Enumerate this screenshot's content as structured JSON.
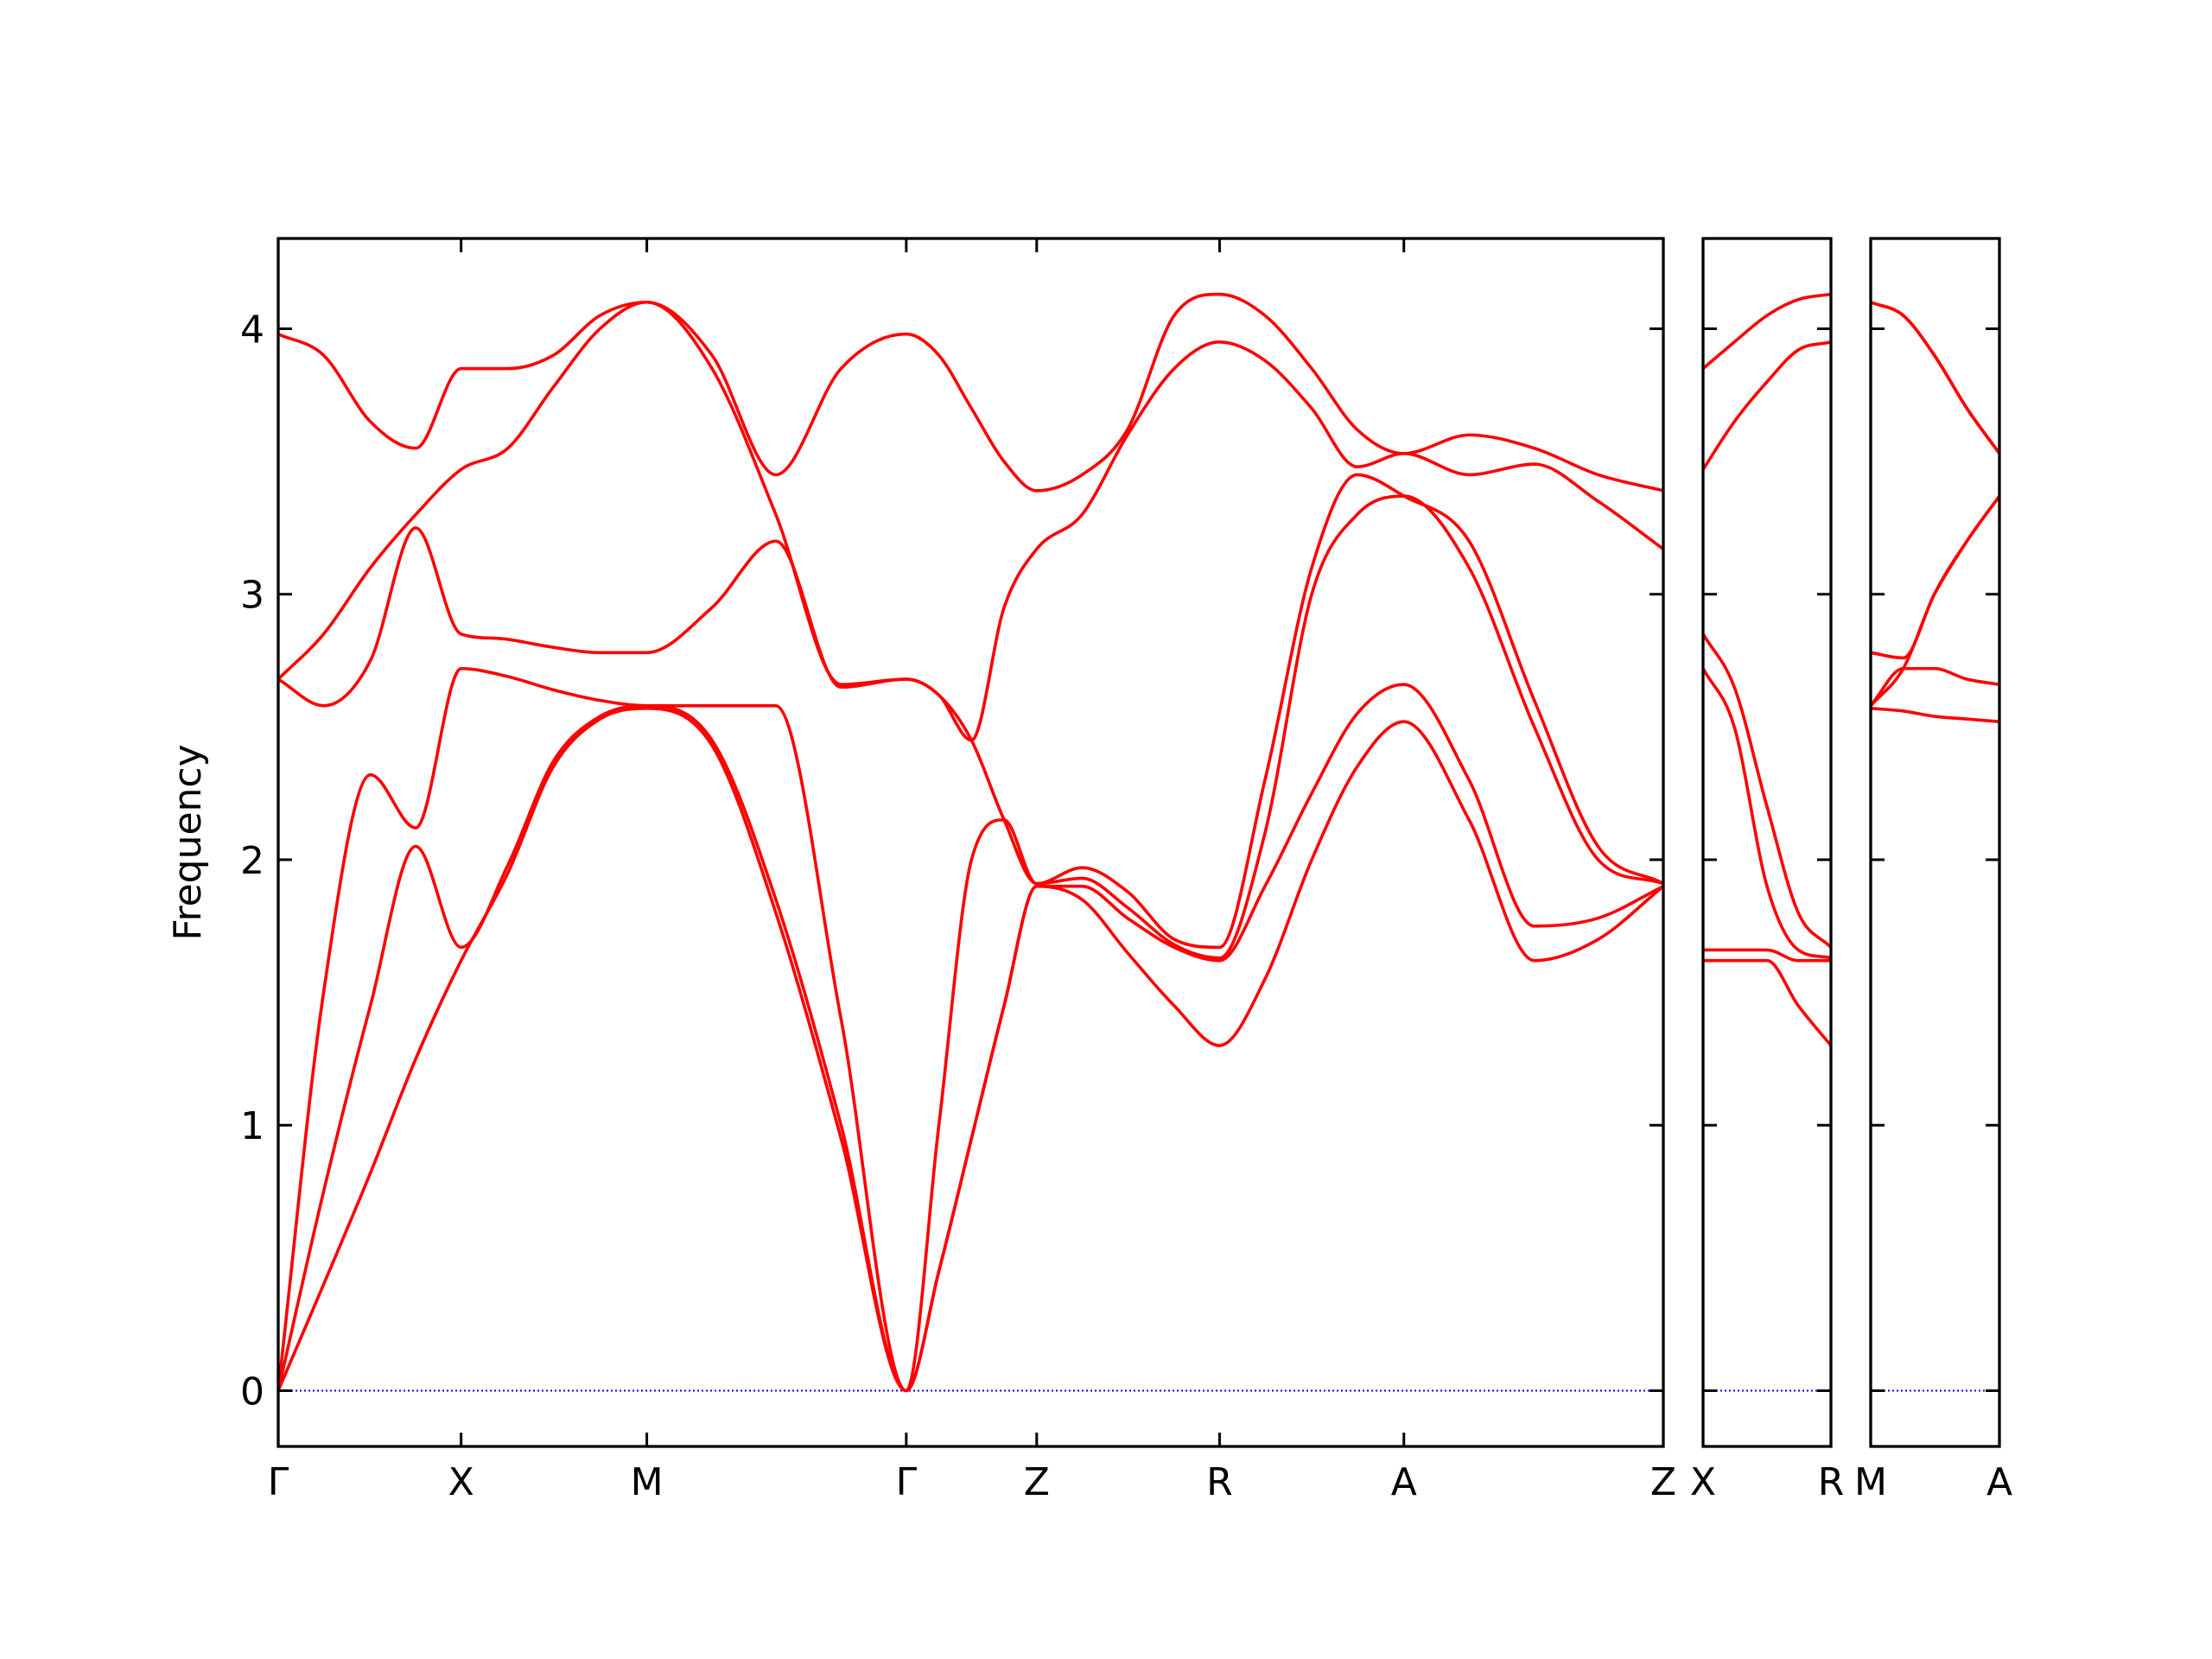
{
  "chart_data": [
    {
      "type": "line",
      "ylabel": "Frequency",
      "x": [
        0,
        0.032,
        0.065,
        0.097,
        0.129,
        0.162,
        0.194,
        0.227,
        0.26,
        0.306,
        0.351,
        0.397,
        0.443,
        0.466,
        0.489,
        0.512,
        0.535,
        0.567,
        0.599,
        0.632,
        0.664,
        0.696,
        0.729,
        0.761,
        0.794,
        0.84,
        0.886,
        0.931,
        0.977
      ],
      "xlim": [
        0,
        0.977
      ],
      "ylim": [
        -0.21,
        4.34
      ],
      "xticks": [
        {
          "value": 0,
          "label": "Γ"
        },
        {
          "value": 0.129,
          "label": "X"
        },
        {
          "value": 0.26,
          "label": "M"
        },
        {
          "value": 0.443,
          "label": "Γ"
        },
        {
          "value": 0.535,
          "label": "Z"
        },
        {
          "value": 0.664,
          "label": "R"
        },
        {
          "value": 0.794,
          "label": "A"
        },
        {
          "value": 0.977,
          "label": "Z"
        }
      ],
      "yticks": [
        0,
        1,
        2,
        3,
        4
      ],
      "ytick_labels": true,
      "hline": 0,
      "hline_color": "#0000ff",
      "series": [
        {
          "color": "#ff0000",
          "values": [
            0,
            0.4,
            0.82,
            1.25,
            1.62,
            1.95,
            2.35,
            2.53,
            2.57,
            2.43,
            1.8,
            0.95,
            0,
            0.45,
            0.95,
            1.45,
            1.9,
            1.85,
            1.65,
            1.45,
            1.3,
            1.55,
            2.0,
            2.35,
            2.52,
            2.15,
            1.62,
            1.7,
            1.9
          ]
        },
        {
          "color": "#ff0000",
          "values": [
            0,
            0.75,
            1.45,
            2.05,
            1.67,
            1.98,
            2.37,
            2.54,
            2.58,
            2.45,
            1.85,
            1.0,
            0,
            0.45,
            0.95,
            1.45,
            1.9,
            1.9,
            1.78,
            1.67,
            1.62,
            1.9,
            2.25,
            2.55,
            2.66,
            2.3,
            1.75,
            1.78,
            1.9
          ]
        },
        {
          "color": "#ff0000",
          "values": [
            0,
            1.5,
            2.32,
            2.12,
            2.72,
            2.69,
            2.64,
            2.6,
            2.58,
            2.58,
            2.58,
            1.4,
            0,
            1.0,
            2.0,
            2.15,
            1.91,
            1.93,
            1.82,
            1.68,
            1.63,
            2.1,
            3.0,
            3.3,
            3.37,
            3.1,
            2.5,
            2.0,
            1.91
          ]
        },
        {
          "color": "#ff0000",
          "values": [
            2.68,
            2.58,
            2.75,
            3.25,
            2.85,
            2.83,
            2.8,
            2.78,
            2.78,
            2.95,
            3.2,
            2.65,
            2.68,
            2.62,
            2.45,
            2.15,
            1.91,
            1.97,
            1.88,
            1.7,
            1.67,
            2.3,
            3.1,
            3.45,
            3.37,
            3.2,
            2.6,
            2.05,
            1.91
          ]
        },
        {
          "color": "#ff0000",
          "values": [
            2.68,
            2.85,
            3.1,
            3.3,
            3.47,
            3.55,
            3.78,
            4.0,
            4.1,
            3.85,
            3.3,
            2.66,
            2.68,
            2.62,
            2.45,
            2.95,
            3.17,
            3.3,
            3.6,
            3.85,
            3.95,
            3.88,
            3.7,
            3.48,
            3.53,
            3.45,
            3.49,
            3.35,
            3.17
          ]
        },
        {
          "color": "#ff0000",
          "values": [
            3.98,
            3.9,
            3.65,
            3.55,
            3.85,
            3.85,
            3.9,
            4.05,
            4.1,
            3.9,
            3.45,
            3.85,
            3.98,
            3.9,
            3.7,
            3.5,
            3.39,
            3.45,
            3.62,
            4.05,
            4.13,
            4.05,
            3.85,
            3.62,
            3.53,
            3.6,
            3.55,
            3.45,
            3.39
          ]
        }
      ]
    },
    {
      "type": "line",
      "x": [
        0.977,
        0.999,
        1.022,
        1.044,
        1.067
      ],
      "xlim": [
        0.977,
        1.067
      ],
      "ylim": [
        -0.21,
        4.34
      ],
      "xticks": [
        {
          "value": 0.977,
          "label": "X"
        },
        {
          "value": 1.067,
          "label": "R"
        }
      ],
      "yticks": [
        0,
        1,
        2,
        3,
        4
      ],
      "ytick_labels": false,
      "hline": 0,
      "hline_color": "#0000ff",
      "series": [
        {
          "color": "#ff0000",
          "values": [
            1.62,
            1.62,
            1.62,
            1.45,
            1.3
          ]
        },
        {
          "color": "#ff0000",
          "values": [
            1.66,
            1.66,
            1.66,
            1.62,
            1.62
          ]
        },
        {
          "color": "#ff0000",
          "values": [
            2.72,
            2.5,
            1.9,
            1.66,
            1.63
          ]
        },
        {
          "color": "#ff0000",
          "values": [
            2.85,
            2.65,
            2.2,
            1.8,
            1.67
          ]
        },
        {
          "color": "#ff0000",
          "values": [
            3.47,
            3.65,
            3.8,
            3.92,
            3.95
          ]
        },
        {
          "color": "#ff0000",
          "values": [
            3.85,
            3.95,
            4.05,
            4.11,
            4.13
          ]
        }
      ]
    },
    {
      "type": "line",
      "x": [
        1.067,
        1.09,
        1.112,
        1.135,
        1.158
      ],
      "xlim": [
        1.067,
        1.158
      ],
      "ylim": [
        -0.21,
        4.34
      ],
      "xticks": [
        {
          "value": 1.067,
          "label": "M"
        },
        {
          "value": 1.158,
          "label": "A"
        }
      ],
      "yticks": [
        0,
        1,
        2,
        3,
        4
      ],
      "ytick_labels": false,
      "hline": 0,
      "hline_color": "#0000ff",
      "series": [
        {
          "color": "#ff0000",
          "values": [
            2.57,
            2.56,
            2.54,
            2.53,
            2.52
          ]
        },
        {
          "color": "#ff0000",
          "values": [
            2.58,
            2.72,
            2.72,
            2.68,
            2.66
          ]
        },
        {
          "color": "#ff0000",
          "values": [
            2.58,
            2.72,
            3.0,
            3.2,
            3.37
          ]
        },
        {
          "color": "#ff0000",
          "values": [
            2.78,
            2.76,
            3.0,
            3.2,
            3.37
          ]
        },
        {
          "color": "#ff0000",
          "values": [
            4.1,
            4.05,
            3.9,
            3.7,
            3.53
          ]
        },
        {
          "color": "#ff0000",
          "values": [
            4.1,
            4.05,
            3.9,
            3.7,
            3.53
          ]
        }
      ]
    }
  ]
}
